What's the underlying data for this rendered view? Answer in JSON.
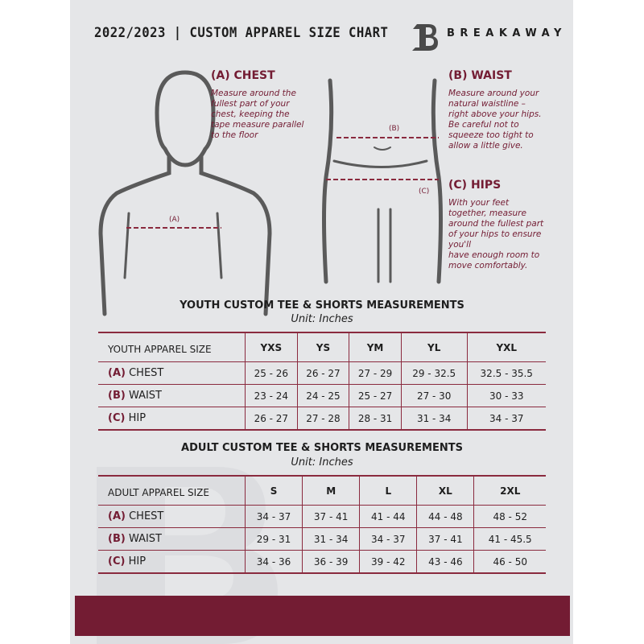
{
  "header": {
    "title": "2022/2023  |  CUSTOM APPAREL SIZE CHART",
    "brand": "BREAKAWAY",
    "logo": "breakaway-b-logo"
  },
  "colors": {
    "accent": "#731c33",
    "background": "#e5e6e8",
    "text": "#1e1e1e"
  },
  "guide": {
    "chest": {
      "heading": "(A) CHEST",
      "marker": "(A)",
      "text": [
        "Measure around the",
        "fullest part of your",
        "chest, keeping the",
        "tape measure parallel",
        "to the floor"
      ]
    },
    "waist": {
      "heading": "(B) WAIST",
      "marker": "(B)",
      "text": [
        "Measure around your",
        "natural waistline –",
        "right above your hips.",
        "Be careful not to",
        "squeeze too tight to",
        "allow a little give."
      ]
    },
    "hips": {
      "heading": "(C) HIPS",
      "marker": "(C)",
      "text": [
        "With your feet",
        "together, measure",
        "around the fullest part",
        "of your hips to ensure",
        "you'll",
        "have enough room to",
        "move comfortably."
      ]
    }
  },
  "youth": {
    "title": "YOUTH CUSTOM TEE & SHORTS MEASUREMENTS",
    "unit": "Unit: Inches",
    "header": "YOUTH APPAREL SIZE",
    "sizes": [
      "YXS",
      "YS",
      "YM",
      "YL",
      "YXL"
    ],
    "rows": [
      {
        "tag": "(A)",
        "label": "CHEST",
        "values": [
          "25 - 26",
          "26 - 27",
          "27 - 29",
          "29 - 32.5",
          "32.5 - 35.5"
        ]
      },
      {
        "tag": "(B)",
        "label": "WAIST",
        "values": [
          "23 - 24",
          "24 - 25",
          "25 - 27",
          "27 - 30",
          "30 - 33"
        ]
      },
      {
        "tag": "(C)",
        "label": "HIP",
        "values": [
          "26 - 27",
          "27 - 28",
          "28 - 31",
          "31 - 34",
          "34 - 37"
        ]
      }
    ]
  },
  "adult": {
    "title": "ADULT CUSTOM TEE & SHORTS MEASUREMENTS",
    "unit": "Unit: Inches",
    "header": "ADULT APPAREL SIZE",
    "sizes": [
      "S",
      "M",
      "L",
      "XL",
      "2XL"
    ],
    "rows": [
      {
        "tag": "(A)",
        "label": "CHEST",
        "values": [
          "34 - 37",
          "37 - 41",
          "41 - 44",
          "44 - 48",
          "48 - 52"
        ]
      },
      {
        "tag": "(B)",
        "label": "WAIST",
        "values": [
          "29 - 31",
          "31 - 34",
          "34 - 37",
          "37 - 41",
          "41 - 45.5"
        ]
      },
      {
        "tag": "(C)",
        "label": "HIP",
        "values": [
          "34 - 36",
          "36 - 39",
          "39 - 42",
          "43 - 46",
          "46 - 50"
        ]
      }
    ]
  }
}
